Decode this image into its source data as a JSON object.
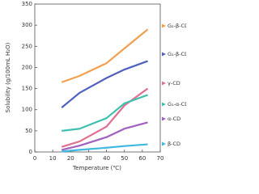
{
  "chart_data": {
    "type": "line",
    "x_label": "Temperature (℃)",
    "y_label": "Solubility (g/100mL H₂O)",
    "x": [
      15,
      25,
      40,
      50,
      63
    ],
    "series": [
      {
        "name": "G₂-β-CD",
        "color": "#f0a050",
        "values": [
          165,
          180,
          210,
          245,
          290
        ]
      },
      {
        "name": "G₁-β-CD",
        "color": "#5060c0",
        "values": [
          105,
          140,
          175,
          195,
          215
        ]
      },
      {
        "name": "γ-CD",
        "color": "#e07090",
        "values": [
          12,
          25,
          60,
          110,
          150
        ]
      },
      {
        "name": "G₁-α-CD",
        "color": "#40c0b0",
        "values": [
          50,
          55,
          80,
          115,
          135
        ]
      },
      {
        "name": "α-CD",
        "color": "#a060c0",
        "values": [
          5,
          15,
          35,
          55,
          70
        ]
      },
      {
        "name": "β-CD",
        "color": "#40b8e0",
        "values": [
          1,
          5,
          10,
          14,
          18
        ]
      }
    ],
    "xlim": [
      0,
      70
    ],
    "xticks": [
      0,
      10,
      20,
      30,
      40,
      50,
      60,
      70
    ],
    "ylim": [
      0,
      350
    ],
    "yticks": [
      0,
      50,
      100,
      150,
      200,
      250,
      300,
      350
    ]
  }
}
